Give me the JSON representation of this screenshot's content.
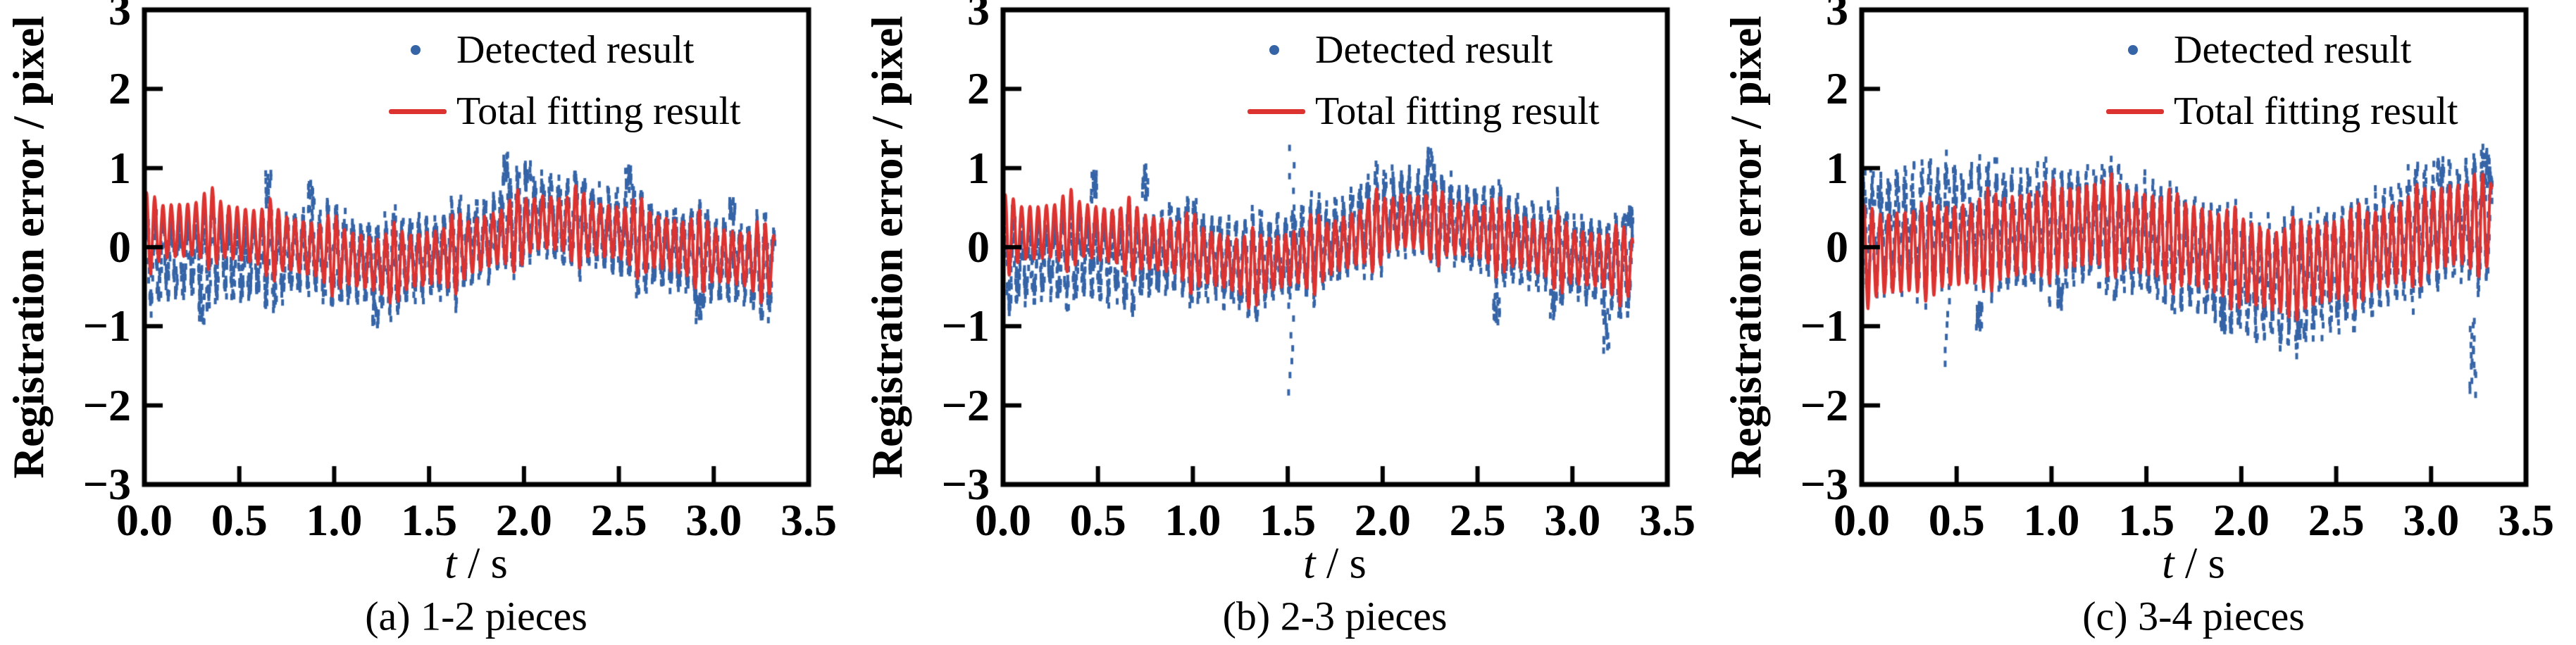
{
  "figure": {
    "background": "#ffffff",
    "text_color": "#000000"
  },
  "chart_data": {
    "type": "scatter_line_multiples",
    "panels": 3,
    "shared": {
      "xlabel": "t / s",
      "ylabel": "Registration error / pixel",
      "xlim": [
        0,
        3.5
      ],
      "ylim": [
        -3,
        3
      ],
      "grid": false,
      "legend_position": "upper right inside, no frame"
    }
  },
  "charts": [
    {
      "caption": "(a) 1-2 pieces",
      "ylabel": "Registration error / pixel",
      "xlabel_symbol": "t",
      "xlabel_unit": " / s",
      "x_ticks": [
        "0.0",
        "0.5",
        "1.0",
        "1.5",
        "2.0",
        "2.5",
        "3.0",
        "3.5"
      ],
      "x_tick_values": [
        0,
        0.5,
        1,
        1.5,
        2,
        2.5,
        3,
        3.5
      ],
      "y_ticks": [
        "3",
        "2",
        "1",
        "0",
        "−1",
        "−2",
        "−3"
      ],
      "y_tick_values": [
        3,
        2,
        1,
        0,
        -1,
        -2,
        -3
      ],
      "xlim": [
        0,
        3.5
      ],
      "ylim": [
        -3,
        3
      ],
      "seed": 7,
      "legend": [
        {
          "label": "Detected result",
          "marker": "dot",
          "color": "#3564a7"
        },
        {
          "label": "Total fitting result",
          "marker": "line",
          "color": "#dd3330"
        }
      ],
      "series": {
        "detected": {
          "type": "scatter",
          "color": "#3564a7",
          "noise_sd": 0.12,
          "bias_curve": [
            [
              0,
              -0.33
            ],
            [
              0.55,
              -0.3
            ],
            [
              0.85,
              -0.05
            ],
            [
              1.0,
              0
            ],
            [
              1.8,
              0.05
            ],
            [
              2.0,
              0.12
            ],
            [
              2.3,
              0.05
            ],
            [
              2.6,
              -0.05
            ],
            [
              3.32,
              -0.05
            ]
          ],
          "outlier_streaks": [
            [
              0.3,
              -0.95,
              -0.62
            ],
            [
              0.65,
              0.55,
              0.95
            ],
            [
              0.88,
              0.45,
              0.8
            ],
            [
              1.22,
              -0.98,
              -0.7
            ],
            [
              1.9,
              0.82,
              1.15
            ],
            [
              2.02,
              0.8,
              1.08
            ],
            [
              2.55,
              0.75,
              1.0
            ],
            [
              2.92,
              -0.92,
              -0.6
            ],
            [
              3.1,
              0.35,
              0.6
            ]
          ]
        },
        "fitting": {
          "type": "line",
          "color": "#dd3330",
          "line_width": 4,
          "t_start": 0,
          "t_end": 3.32,
          "mean_curve": [
            [
              0,
              0.18
            ],
            [
              0.35,
              0.24
            ],
            [
              0.8,
              0.02
            ],
            [
              1.25,
              -0.24
            ],
            [
              1.6,
              -0.1
            ],
            [
              2.1,
              0.32
            ],
            [
              2.5,
              0.18
            ],
            [
              3.0,
              -0.1
            ],
            [
              3.32,
              -0.2
            ]
          ],
          "oscillation": {
            "freq_hz": 23,
            "base_amp": 0.33,
            "pulse_amp": 0.2,
            "pulse_freq_hz": 3.1
          }
        }
      }
    },
    {
      "caption": "(b) 2-3 pieces",
      "ylabel": "Registration error / pixel",
      "xlabel_symbol": "t",
      "xlabel_unit": " / s",
      "x_ticks": [
        "0.0",
        "0.5",
        "1.0",
        "1.5",
        "2.0",
        "2.5",
        "3.0",
        "3.5"
      ],
      "x_tick_values": [
        0,
        0.5,
        1,
        1.5,
        2,
        2.5,
        3,
        3.5
      ],
      "y_ticks": [
        "3",
        "2",
        "1",
        "0",
        "−1",
        "−2",
        "−3"
      ],
      "y_tick_values": [
        3,
        2,
        1,
        0,
        -1,
        -2,
        -3
      ],
      "xlim": [
        0,
        3.5
      ],
      "ylim": [
        -3,
        3
      ],
      "seed": 11,
      "legend": [
        {
          "label": "Detected result",
          "marker": "dot",
          "color": "#3564a7"
        },
        {
          "label": "Total fitting result",
          "marker": "line",
          "color": "#dd3330"
        }
      ],
      "series": {
        "detected": {
          "type": "scatter",
          "color": "#3564a7",
          "noise_sd": 0.13,
          "bias_curve": [
            [
              0,
              -0.33
            ],
            [
              0.6,
              -0.28
            ],
            [
              0.95,
              0
            ],
            [
              1.75,
              0.08
            ],
            [
              2.1,
              0.15
            ],
            [
              2.45,
              0.05
            ],
            [
              3.32,
              -0.02
            ]
          ],
          "outlier_streaks": [
            [
              0.48,
              0.6,
              0.95
            ],
            [
              0.75,
              0.6,
              1.02
            ],
            [
              1.52,
              -1.82,
              1.25
            ],
            [
              2.25,
              0.9,
              1.22
            ],
            [
              2.6,
              -0.95,
              -0.6
            ],
            [
              2.9,
              -0.85,
              -0.55
            ],
            [
              3.18,
              -1.3,
              -0.75
            ],
            [
              3.3,
              0.3,
              0.5
            ]
          ]
        },
        "fitting": {
          "type": "line",
          "color": "#dd3330",
          "line_width": 4,
          "t_start": 0,
          "t_end": 3.32,
          "mean_curve": [
            [
              0,
              0.16
            ],
            [
              0.4,
              0.22
            ],
            [
              0.9,
              0.0
            ],
            [
              1.3,
              -0.28
            ],
            [
              1.7,
              -0.04
            ],
            [
              2.1,
              0.34
            ],
            [
              2.5,
              0.2
            ],
            [
              3.0,
              -0.12
            ],
            [
              3.32,
              -0.24
            ]
          ],
          "oscillation": {
            "freq_hz": 23,
            "base_amp": 0.33,
            "pulse_amp": 0.2,
            "pulse_freq_hz": 3.1
          }
        }
      }
    },
    {
      "caption": "(c) 3-4 pieces",
      "ylabel": "Registration error / pixel",
      "xlabel_symbol": "t",
      "xlabel_unit": " / s",
      "x_ticks": [
        "0.0",
        "0.5",
        "1.0",
        "1.5",
        "2.0",
        "2.5",
        "3.0",
        "3.5"
      ],
      "x_tick_values": [
        0,
        0.5,
        1,
        1.5,
        2,
        2.5,
        3,
        3.5
      ],
      "y_ticks": [
        "3",
        "2",
        "1",
        "0",
        "−1",
        "−2",
        "−3"
      ],
      "y_tick_values": [
        3,
        2,
        1,
        0,
        -1,
        -2,
        -3
      ],
      "xlim": [
        0,
        3.5
      ],
      "ylim": [
        -3,
        3
      ],
      "seed": 13,
      "legend": [
        {
          "label": "Detected result",
          "marker": "dot",
          "color": "#3564a7"
        },
        {
          "label": "Total fitting result",
          "marker": "line",
          "color": "#dd3330"
        }
      ],
      "series": {
        "detected": {
          "type": "scatter",
          "color": "#3564a7",
          "noise_sd": 0.18,
          "bias_curve": [
            [
              0,
              0.3
            ],
            [
              0.55,
              0.28
            ],
            [
              0.85,
              0.05
            ],
            [
              1.5,
              -0.05
            ],
            [
              1.9,
              -0.18
            ],
            [
              2.35,
              -0.15
            ],
            [
              2.8,
              0
            ],
            [
              3.32,
              0.05
            ]
          ],
          "outlier_streaks": [
            [
              0.45,
              -1.45,
              1.2
            ],
            [
              0.62,
              -1.05,
              -0.7
            ],
            [
              1.05,
              -0.75,
              -0.5
            ],
            [
              1.9,
              -1.05,
              -0.75
            ],
            [
              2.3,
              -1.12,
              -0.8
            ],
            [
              3.05,
              0.85,
              1.1
            ],
            [
              3.22,
              -1.85,
              -0.95
            ],
            [
              3.3,
              0.8,
              1.2
            ]
          ]
        },
        "fitting": {
          "type": "line",
          "color": "#dd3330",
          "line_width": 4,
          "t_start": 0,
          "t_end": 3.32,
          "mean_curve": [
            [
              0,
              -0.12
            ],
            [
              0.5,
              0.02
            ],
            [
              0.8,
              0.14
            ],
            [
              1.25,
              0.3
            ],
            [
              1.75,
              0.02
            ],
            [
              2.2,
              -0.32
            ],
            [
              2.7,
              -0.06
            ],
            [
              3.1,
              0.28
            ],
            [
              3.32,
              0.3
            ]
          ],
          "oscillation": {
            "freq_hz": 23,
            "base_amp": 0.5,
            "pulse_amp": 0.17,
            "pulse_freq_hz": 3.1
          }
        }
      }
    }
  ]
}
